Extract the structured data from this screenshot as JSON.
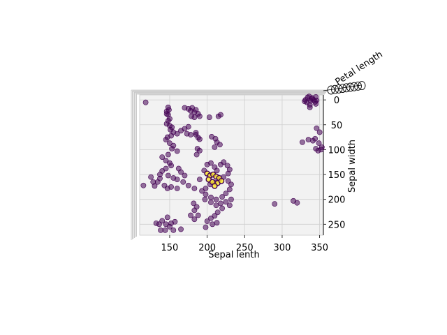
{
  "chart_data": {
    "type": "scatter",
    "projection": "3d",
    "view": "top-down (looking along the z axis)",
    "xlabel": "Sepal lenth",
    "ylabel": "Sepal width",
    "zlabel": "Petal length",
    "xlim": [
      110,
      355
    ],
    "ylim": [
      -10,
      272
    ],
    "xticks": [
      "150",
      "200",
      "250",
      "300",
      "350"
    ],
    "yticks": [
      "0",
      "50",
      "100",
      "150",
      "200",
      "250"
    ],
    "grid": true,
    "pane_color": "#f2f2f2",
    "colors": {
      "dominant": "#440154",
      "highlight": "#fde725"
    },
    "marker_alpha": 0.55,
    "points": [
      [
        118,
        5,
        0
      ],
      [
        334,
        -5,
        0
      ],
      [
        340,
        -4,
        0
      ],
      [
        345,
        -6,
        0
      ],
      [
        331,
        0,
        0
      ],
      [
        338,
        2,
        0
      ],
      [
        342,
        0,
        0
      ],
      [
        336,
        -7,
        0
      ],
      [
        330,
        3,
        0
      ],
      [
        346,
        1,
        0
      ],
      [
        333,
        5,
        0
      ],
      [
        339,
        -2,
        0
      ],
      [
        344,
        4,
        0
      ],
      [
        337,
        10,
        0
      ],
      [
        345,
        8,
        0
      ],
      [
        148,
        15,
        0
      ],
      [
        146,
        23,
        0
      ],
      [
        149,
        20,
        0
      ],
      [
        148,
        30,
        0
      ],
      [
        146,
        28,
        0
      ],
      [
        170,
        16,
        0
      ],
      [
        175,
        18,
        0
      ],
      [
        180,
        16,
        0
      ],
      [
        185,
        20,
        0
      ],
      [
        178,
        22,
        0
      ],
      [
        183,
        25,
        0
      ],
      [
        188,
        28,
        0
      ],
      [
        190,
        33,
        0
      ],
      [
        179,
        33,
        0
      ],
      [
        183,
        35,
        0
      ],
      [
        203,
        35,
        0
      ],
      [
        215,
        33,
        0
      ],
      [
        218,
        30,
        0
      ],
      [
        337,
        15,
        0
      ],
      [
        346,
        57,
        0
      ],
      [
        350,
        65,
        0
      ],
      [
        344,
        78,
        0
      ],
      [
        341,
        82,
        0
      ],
      [
        349,
        87,
        0
      ],
      [
        353,
        95,
        0
      ],
      [
        345,
        98,
        0
      ],
      [
        348,
        102,
        0
      ],
      [
        352,
        100,
        0
      ],
      [
        335,
        80,
        0
      ],
      [
        150,
        38,
        0
      ],
      [
        148,
        42,
        0
      ],
      [
        146,
        48,
        0
      ],
      [
        150,
        52,
        0
      ],
      [
        153,
        55,
        0
      ],
      [
        151,
        60,
        0
      ],
      [
        155,
        65,
        0
      ],
      [
        160,
        68,
        0
      ],
      [
        165,
        62,
        0
      ],
      [
        170,
        58,
        0
      ],
      [
        175,
        54,
        0
      ],
      [
        152,
        72,
        0
      ],
      [
        147,
        75,
        0
      ],
      [
        145,
        80,
        0
      ],
      [
        150,
        87,
        0
      ],
      [
        155,
        92,
        0
      ],
      [
        153,
        98,
        0
      ],
      [
        160,
        103,
        0
      ],
      [
        148,
        110,
        0
      ],
      [
        173,
        68,
        0
      ],
      [
        178,
        70,
        0
      ],
      [
        185,
        70,
        0
      ],
      [
        185,
        66,
        0
      ],
      [
        188,
        76,
        0
      ],
      [
        190,
        79,
        0
      ],
      [
        206,
        74,
        0
      ],
      [
        211,
        78,
        0
      ],
      [
        213,
        85,
        0
      ],
      [
        217,
        90,
        0
      ],
      [
        210,
        95,
        0
      ],
      [
        187,
        98,
        0
      ],
      [
        190,
        102,
        0
      ],
      [
        186,
        110,
        0
      ],
      [
        140,
        115,
        0
      ],
      [
        145,
        122,
        0
      ],
      [
        150,
        127,
        0
      ],
      [
        152,
        132,
        0
      ],
      [
        145,
        138,
        0
      ],
      [
        140,
        143,
        0
      ],
      [
        137,
        150,
        0
      ],
      [
        148,
        152,
        0
      ],
      [
        155,
        157,
        0
      ],
      [
        160,
        160,
        0
      ],
      [
        165,
        145,
        0
      ],
      [
        170,
        152,
        0
      ],
      [
        162,
        138,
        0
      ],
      [
        137,
        158,
        0
      ],
      [
        125,
        155,
        0
      ],
      [
        128,
        165,
        0
      ],
      [
        134,
        165,
        0
      ],
      [
        115,
        172,
        0
      ],
      [
        130,
        173,
        0
      ],
      [
        143,
        172,
        0
      ],
      [
        147,
        178,
        0
      ],
      [
        152,
        175,
        0
      ],
      [
        160,
        178,
        0
      ],
      [
        168,
        165,
        0
      ],
      [
        175,
        172,
        0
      ],
      [
        183,
        178,
        0
      ],
      [
        190,
        160,
        0
      ],
      [
        196,
        142,
        0
      ],
      [
        200,
        130,
        0
      ],
      [
        205,
        127,
        0
      ],
      [
        210,
        135,
        0
      ],
      [
        213,
        142,
        0
      ],
      [
        218,
        130,
        0
      ],
      [
        222,
        125,
        0
      ],
      [
        227,
        132,
        0
      ],
      [
        230,
        140,
        0
      ],
      [
        228,
        148,
        0
      ],
      [
        222,
        155,
        0
      ],
      [
        216,
        160,
        0
      ],
      [
        210,
        166,
        0
      ],
      [
        204,
        170,
        0
      ],
      [
        198,
        178,
        0
      ],
      [
        193,
        183,
        0
      ],
      [
        198,
        190,
        0
      ],
      [
        205,
        196,
        0
      ],
      [
        212,
        200,
        0
      ],
      [
        220,
        195,
        0
      ],
      [
        225,
        188,
        0
      ],
      [
        230,
        180,
        0
      ],
      [
        232,
        170,
        0
      ],
      [
        228,
        163,
        0
      ],
      [
        197,
        200,
        0
      ],
      [
        205,
        206,
        0
      ],
      [
        212,
        212,
        0
      ],
      [
        218,
        208,
        0
      ],
      [
        225,
        205,
        0
      ],
      [
        232,
        200,
        0
      ],
      [
        230,
        212,
        0
      ],
      [
        220,
        218,
        0
      ],
      [
        214,
        226,
        0
      ],
      [
        210,
        233,
        0
      ],
      [
        205,
        238,
        0
      ],
      [
        200,
        244,
        0
      ],
      [
        182,
        208,
        0
      ],
      [
        186,
        215,
        0
      ],
      [
        183,
        222,
        0
      ],
      [
        188,
        232,
        0
      ],
      [
        178,
        232,
        0
      ],
      [
        183,
        240,
        0
      ],
      [
        207,
        250,
        0
      ],
      [
        213,
        247,
        0
      ],
      [
        198,
        256,
        0
      ],
      [
        147,
        236,
        0
      ],
      [
        140,
        243,
        0
      ],
      [
        132,
        248,
        0
      ],
      [
        136,
        250,
        0
      ],
      [
        145,
        250,
        0
      ],
      [
        152,
        248,
        0
      ],
      [
        157,
        245,
        0
      ],
      [
        150,
        255,
        0
      ],
      [
        144,
        262,
        0
      ],
      [
        138,
        262,
        0
      ],
      [
        155,
        262,
        0
      ],
      [
        165,
        260,
        0
      ],
      [
        290,
        209,
        0
      ],
      [
        315,
        203,
        0
      ],
      [
        320,
        207,
        0
      ],
      [
        327,
        85,
        0
      ]
    ],
    "highlight_points": [
      [
        200,
        148,
        0
      ],
      [
        204,
        152,
        0
      ],
      [
        208,
        150,
        0
      ],
      [
        212,
        154,
        0
      ],
      [
        216,
        157,
        0
      ],
      [
        202,
        160,
        0
      ],
      [
        207,
        165,
        0
      ],
      [
        214,
        167,
        0
      ],
      [
        219,
        163,
        0
      ],
      [
        210,
        173,
        0
      ]
    ]
  }
}
